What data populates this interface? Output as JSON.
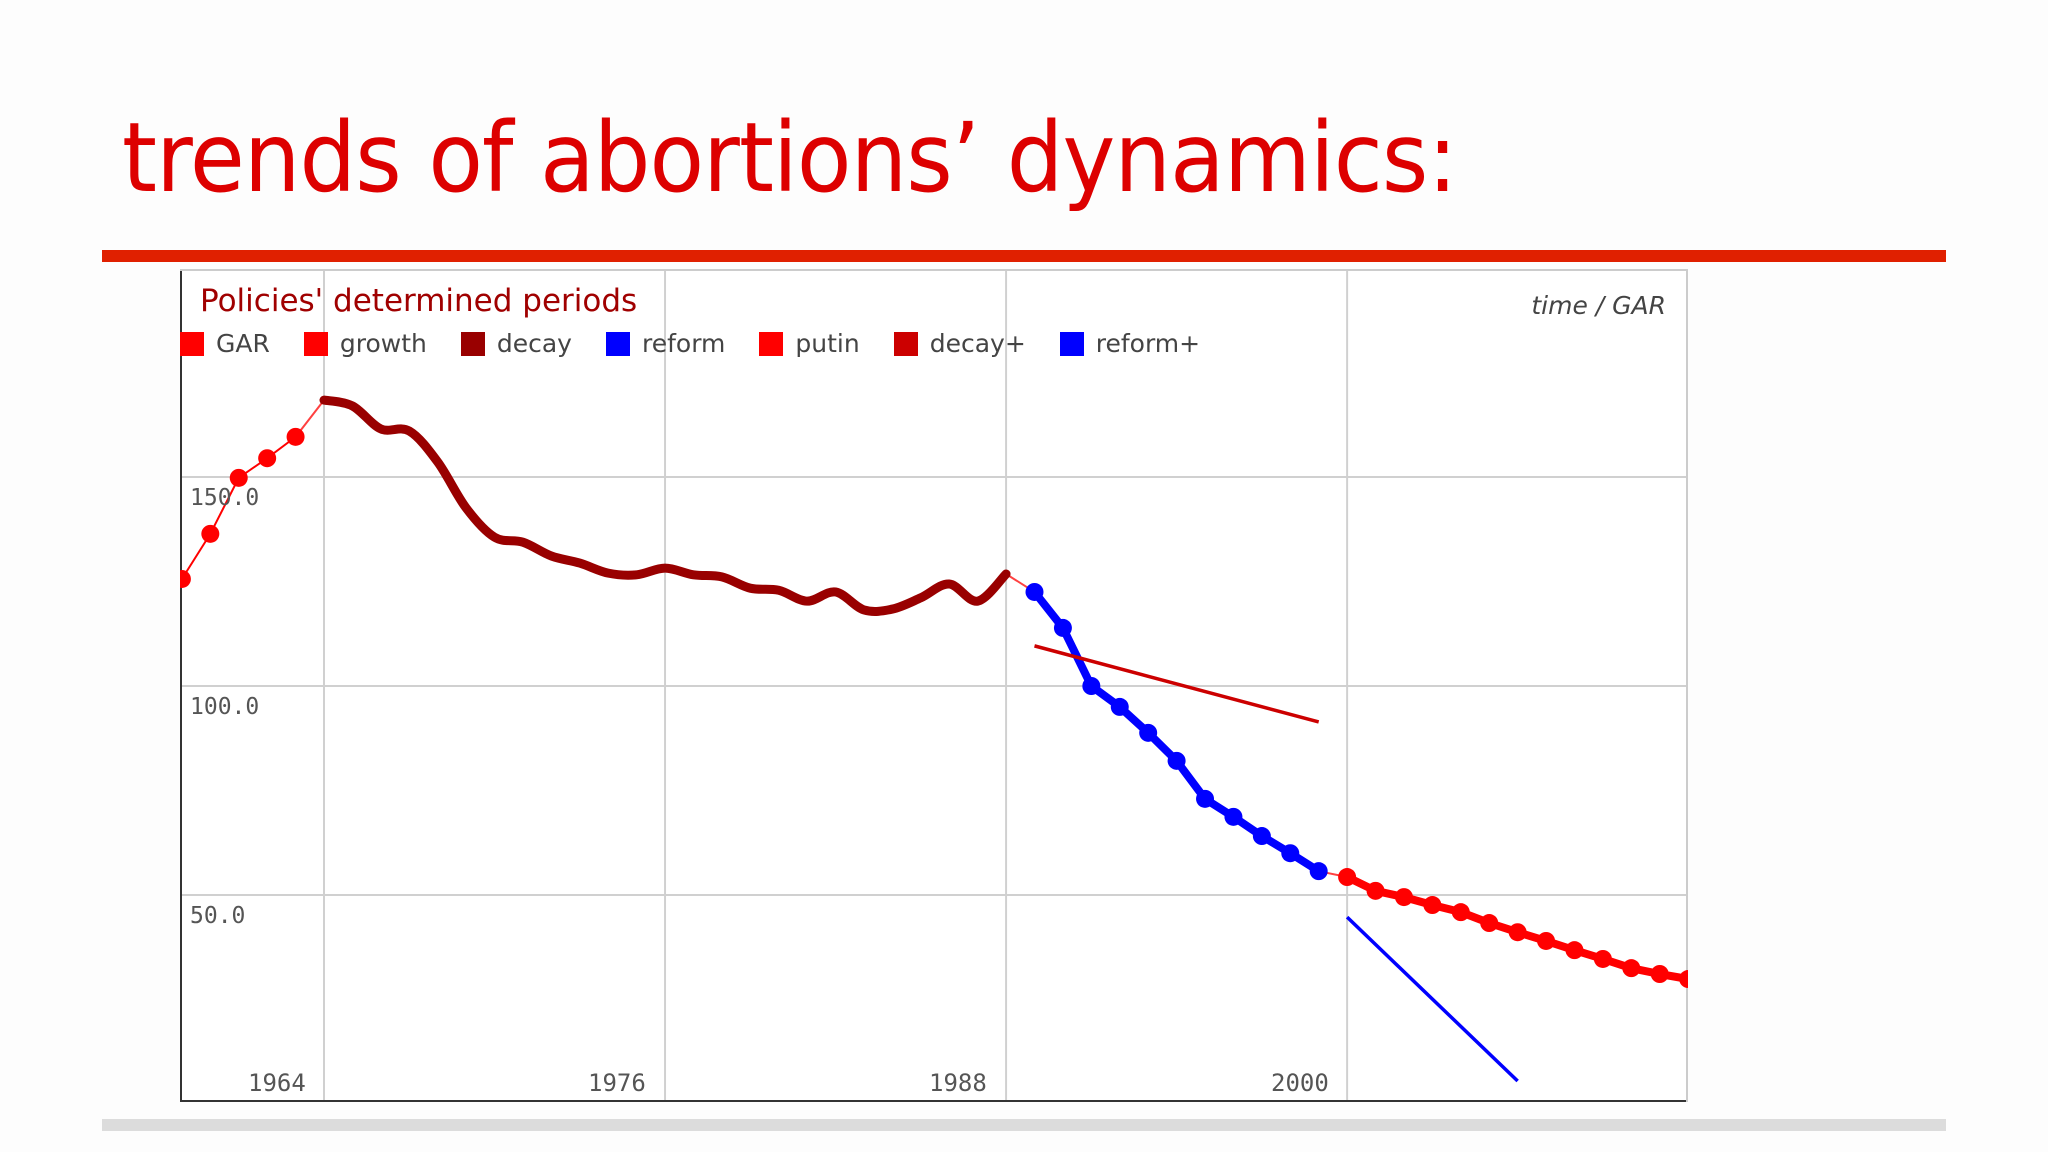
{
  "slide": {
    "title": "trends of abortions’ dynamics:",
    "title_color": "#dd0000",
    "rule_color": "#e02000"
  },
  "chart_data": {
    "type": "line",
    "title": "Policies' determined periods",
    "axis_caption": "time / GAR",
    "xlabel": "time",
    "ylabel": "GAR",
    "ylim": [
      0,
      200
    ],
    "xlim": [
      1959,
      2012
    ],
    "yticks": [
      "150.0",
      "100.0",
      "50.0"
    ],
    "xticks": [
      "1964",
      "1976",
      "1988",
      "2000"
    ],
    "grid": true,
    "legend_position": "top",
    "legend": [
      {
        "label": "GAR",
        "color": "#ff0000"
      },
      {
        "label": "growth",
        "color": "#ff0000"
      },
      {
        "label": "decay",
        "color": "#990000"
      },
      {
        "label": "reform",
        "color": "#0000ff"
      },
      {
        "label": "putin",
        "color": "#ff0000"
      },
      {
        "label": "decay+",
        "color": "#cc0000"
      },
      {
        "label": "reform+",
        "color": "#0000ff"
      }
    ],
    "series": [
      {
        "name": "growth",
        "color": "#ff0000",
        "style": "line+markers",
        "x": [
          1959,
          1960,
          1961,
          1962,
          1963
        ],
        "values": [
          125.6,
          136.4,
          149.8,
          154.5,
          159.6
        ]
      },
      {
        "name": "decay",
        "color": "#990000",
        "style": "thick-line",
        "x": [
          1964,
          1965,
          1966,
          1967,
          1968,
          1969,
          1970,
          1971,
          1972,
          1973,
          1974,
          1975,
          1976,
          1977,
          1978,
          1979,
          1980,
          1981,
          1982,
          1983,
          1984,
          1985,
          1986,
          1987,
          1988
        ],
        "values": [
          168.4,
          167.0,
          161.5,
          161.0,
          153.6,
          142.6,
          135.6,
          134.4,
          131.1,
          129.4,
          127.0,
          126.6,
          128.2,
          126.6,
          126.1,
          123.4,
          122.9,
          120.3,
          122.5,
          118.2,
          118.4,
          121.1,
          124.4,
          120.3,
          126.8
        ]
      },
      {
        "name": "reform",
        "color": "#0000ff",
        "style": "line+markers",
        "x": [
          1989,
          1990,
          1991,
          1992,
          1993,
          1994,
          1995,
          1996,
          1997,
          1998,
          1999
        ],
        "values": [
          122.5,
          113.9,
          100.0,
          95.0,
          88.8,
          82.1,
          73.0,
          68.7,
          64.1,
          60.0,
          55.7
        ]
      },
      {
        "name": "putin",
        "color": "#ff0000",
        "style": "line+markers",
        "x": [
          2000,
          2001,
          2002,
          2003,
          2004,
          2005,
          2006,
          2007,
          2008,
          2009,
          2010,
          2011,
          2012
        ],
        "values": [
          54.3,
          51.0,
          49.5,
          47.6,
          45.9,
          43.3,
          41.1,
          39.0,
          36.8,
          34.7,
          32.5,
          31.1,
          29.9
        ]
      },
      {
        "name": "decay+",
        "color": "#cc0000",
        "style": "trend-line",
        "x": [
          1989,
          1999
        ],
        "values": [
          109.6,
          91.4
        ]
      },
      {
        "name": "reform+",
        "color": "#0000ff",
        "style": "trend-line",
        "x": [
          2000,
          2006
        ],
        "values": [
          44.7,
          5.5
        ]
      }
    ]
  }
}
